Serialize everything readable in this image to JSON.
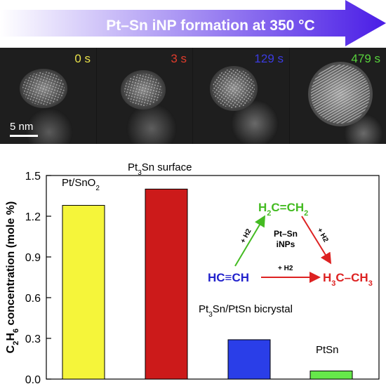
{
  "banner": {
    "title": "Pt–Sn iNP formation at 350 °C",
    "colors": {
      "start": "#ffffff",
      "end": "#4a1de6"
    }
  },
  "tem": {
    "scale_label": "5 nm",
    "panels": [
      {
        "time": "0 s",
        "color": "#e8e04a"
      },
      {
        "time": "3 s",
        "color": "#e03c2c"
      },
      {
        "time": "129 s",
        "color": "#3b3be0"
      },
      {
        "time": "479 s",
        "color": "#58d23c"
      }
    ]
  },
  "chart_data": {
    "type": "bar",
    "title": "",
    "xlabel": "",
    "ylabel": "C2H6 concentration (mole %)",
    "ylim": [
      0,
      1.5
    ],
    "yticks": [
      "0.0",
      "0.3",
      "0.6",
      "0.9",
      "1.2",
      "1.5"
    ],
    "categories": [
      "Pt/SnO2",
      "Pt3Sn surface",
      "Pt3Sn/PtSn bicrystal",
      "PtSn"
    ],
    "values": [
      1.28,
      1.4,
      0.29,
      0.06
    ],
    "colors": [
      "#f5f53a",
      "#cc1a1a",
      "#2a3ee8",
      "#66e84a"
    ]
  },
  "scheme": {
    "reactant": "HC≡CH",
    "intermediate": "H2C=CH2",
    "product": "H3C–CH3",
    "catalyst_line1": "Pt–Sn",
    "catalyst_line2": "iNPs",
    "h2_label": "+ H2",
    "colors": {
      "reactant": "#2222cc",
      "intermediate": "#44bb22",
      "product": "#dd2222"
    }
  }
}
